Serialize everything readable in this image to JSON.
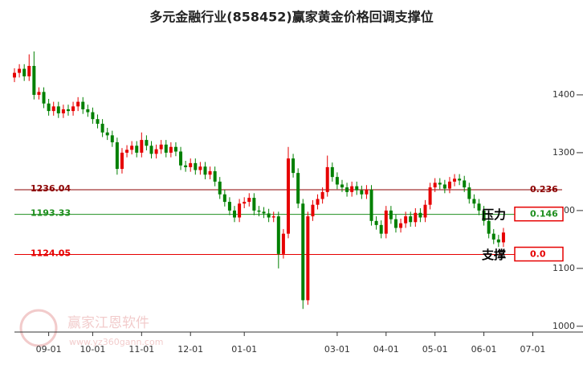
{
  "chart_data": {
    "type": "candlestick",
    "title": "多元金融行业(858452)赢家黄金价格回调支撑位",
    "watermark": "赢家江恩软件",
    "watermark_url": "www.yz360gann.com",
    "up_color": "#e60000",
    "down_color": "#008000",
    "xlim": [
      0,
      112
    ],
    "xticks": [
      {
        "value": 7,
        "label": "09-01"
      },
      {
        "value": 16,
        "label": "10-01"
      },
      {
        "value": 26,
        "label": "11-01"
      },
      {
        "value": 36,
        "label": "12-01"
      },
      {
        "value": 47,
        "label": "01-01"
      },
      {
        "value": 66,
        "label": "03-01"
      },
      {
        "value": 76,
        "label": "04-01"
      },
      {
        "value": 86,
        "label": "05-01"
      },
      {
        "value": 96,
        "label": "06-01"
      },
      {
        "value": 106,
        "label": "07-01"
      }
    ],
    "ylim": [
      990,
      1500
    ],
    "yticks": [
      1000,
      1100,
      1200,
      1300,
      1400
    ],
    "open": [
      1430,
      1438,
      1445,
      1432,
      1450,
      1400,
      1405,
      1385,
      1372,
      1380,
      1368,
      1375,
      1372,
      1380,
      1388,
      1375,
      1370,
      1358,
      1350,
      1335,
      1330,
      1318,
      1272,
      1300,
      1305,
      1312,
      1300,
      1322,
      1312,
      1298,
      1306,
      1314,
      1300,
      1310,
      1302,
      1278,
      1275,
      1282,
      1270,
      1276,
      1262,
      1268,
      1250,
      1228,
      1215,
      1200,
      1188,
      1212,
      1215,
      1222,
      1200,
      1198,
      1195,
      1188,
      1190,
      1125,
      1160,
      1290,
      1265,
      1212,
      1045,
      1190,
      1210,
      1220,
      1232,
      1275,
      1258,
      1245,
      1240,
      1232,
      1242,
      1235,
      1228,
      1236,
      1182,
      1175,
      1160,
      1200,
      1185,
      1170,
      1178,
      1190,
      1180,
      1196,
      1188,
      1210,
      1240,
      1248,
      1245,
      1238,
      1250,
      1255,
      1252,
      1240,
      1220,
      1212,
      1200,
      1182,
      1160,
      1150,
      1145
    ],
    "close": [
      1438,
      1445,
      1432,
      1450,
      1400,
      1405,
      1385,
      1372,
      1380,
      1368,
      1375,
      1372,
      1380,
      1388,
      1375,
      1370,
      1358,
      1350,
      1335,
      1330,
      1318,
      1272,
      1300,
      1305,
      1312,
      1300,
      1322,
      1312,
      1298,
      1306,
      1314,
      1300,
      1310,
      1302,
      1278,
      1275,
      1282,
      1270,
      1276,
      1262,
      1268,
      1250,
      1228,
      1215,
      1200,
      1188,
      1212,
      1215,
      1222,
      1200,
      1198,
      1195,
      1188,
      1190,
      1125,
      1160,
      1290,
      1265,
      1212,
      1045,
      1190,
      1210,
      1220,
      1232,
      1275,
      1258,
      1245,
      1240,
      1232,
      1242,
      1235,
      1228,
      1236,
      1182,
      1175,
      1160,
      1200,
      1185,
      1170,
      1178,
      1190,
      1180,
      1196,
      1188,
      1210,
      1240,
      1248,
      1245,
      1238,
      1250,
      1255,
      1252,
      1240,
      1220,
      1212,
      1200,
      1182,
      1160,
      1150,
      1145,
      1162
    ],
    "high": [
      1446,
      1453,
      1453,
      1470,
      1475,
      1413,
      1413,
      1393,
      1388,
      1388,
      1383,
      1383,
      1388,
      1396,
      1396,
      1383,
      1378,
      1366,
      1358,
      1343,
      1338,
      1326,
      1308,
      1313,
      1320,
      1320,
      1335,
      1330,
      1320,
      1314,
      1322,
      1322,
      1318,
      1318,
      1310,
      1286,
      1290,
      1290,
      1284,
      1284,
      1276,
      1276,
      1258,
      1236,
      1223,
      1208,
      1220,
      1223,
      1230,
      1230,
      1208,
      1206,
      1203,
      1198,
      1198,
      1168,
      1310,
      1298,
      1273,
      1220,
      1198,
      1218,
      1228,
      1240,
      1295,
      1283,
      1266,
      1253,
      1248,
      1250,
      1250,
      1243,
      1244,
      1244,
      1190,
      1183,
      1208,
      1208,
      1193,
      1186,
      1198,
      1198,
      1204,
      1204,
      1218,
      1248,
      1256,
      1256,
      1253,
      1258,
      1263,
      1263,
      1260,
      1248,
      1228,
      1220,
      1208,
      1190,
      1168,
      1158,
      1170
    ],
    "low": [
      1422,
      1430,
      1424,
      1424,
      1392,
      1392,
      1377,
      1364,
      1364,
      1360,
      1360,
      1364,
      1364,
      1372,
      1367,
      1362,
      1350,
      1342,
      1327,
      1322,
      1310,
      1262,
      1264,
      1292,
      1297,
      1292,
      1292,
      1304,
      1290,
      1290,
      1298,
      1292,
      1292,
      1294,
      1270,
      1267,
      1267,
      1262,
      1262,
      1254,
      1254,
      1242,
      1220,
      1207,
      1192,
      1180,
      1180,
      1204,
      1207,
      1192,
      1190,
      1187,
      1180,
      1180,
      1100,
      1117,
      1152,
      1257,
      1204,
      1030,
      1037,
      1182,
      1202,
      1212,
      1224,
      1250,
      1237,
      1232,
      1224,
      1224,
      1227,
      1220,
      1220,
      1174,
      1167,
      1152,
      1152,
      1177,
      1162,
      1162,
      1170,
      1172,
      1172,
      1180,
      1180,
      1202,
      1232,
      1237,
      1230,
      1230,
      1242,
      1244,
      1232,
      1212,
      1204,
      1192,
      1174,
      1152,
      1142,
      1137,
      1137
    ],
    "levels": [
      {
        "value": 1236.04,
        "ratio": "0.236",
        "color": "#8b0000",
        "boxed": false
      },
      {
        "value": 1193.33,
        "ratio": "0.146",
        "color": "#1f8f1f",
        "boxed": true
      },
      {
        "value": 1124.05,
        "ratio": "0.0",
        "color": "#e60000",
        "boxed": true
      }
    ],
    "annotations": [
      {
        "text": "压力",
        "value": 1193.33
      },
      {
        "text": "支撑",
        "value": 1124.05
      }
    ]
  }
}
